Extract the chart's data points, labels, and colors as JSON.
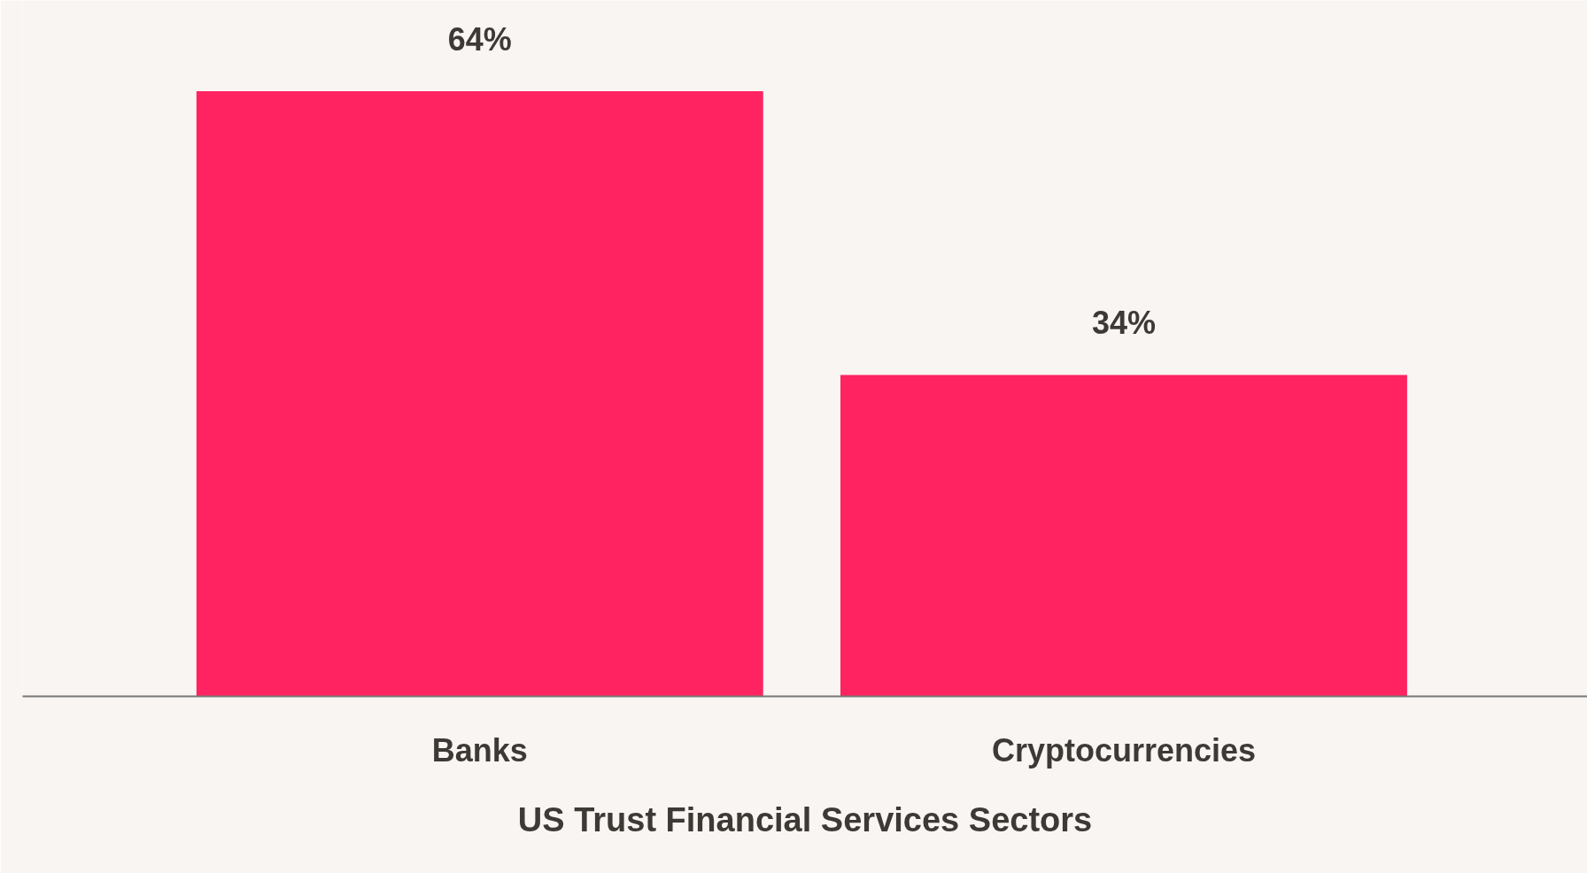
{
  "chart_data": {
    "type": "bar",
    "xlabel": "US Trust Financial Services Sectors",
    "categories": [
      "Banks",
      "Cryptocurrencies"
    ],
    "values": [
      64,
      34
    ],
    "value_labels": [
      "64%",
      "34%"
    ],
    "color": "#ff2361"
  }
}
